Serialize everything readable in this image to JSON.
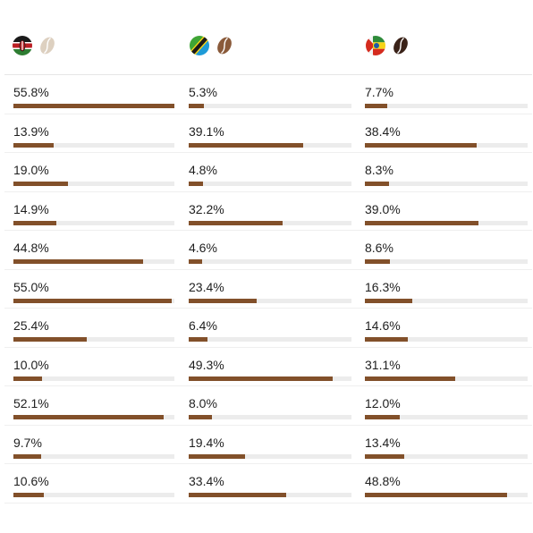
{
  "columns": [
    {
      "key": "kenya",
      "flag": "kenya-flag-icon",
      "bean_icon": "coffee-bean-light-icon",
      "bean_color": "#ddd0c0"
    },
    {
      "key": "tanzania",
      "flag": "tanzania-flag-icon",
      "bean_icon": "coffee-bean-medium-icon",
      "bean_color": "#8a5a3a"
    },
    {
      "key": "ethiopia",
      "flag": "ethiopia-flag-icon",
      "bean_icon": "coffee-bean-dark-icon",
      "bean_color": "#3a2218"
    }
  ],
  "bar_color": "#82502a",
  "rows": [
    [
      {
        "label": "55.8%",
        "value": 55.8
      },
      {
        "label": "5.3%",
        "value": 5.3
      },
      {
        "label": "7.7%",
        "value": 7.7
      }
    ],
    [
      {
        "label": "13.9%",
        "value": 13.9
      },
      {
        "label": "39.1%",
        "value": 39.1
      },
      {
        "label": "38.4%",
        "value": 38.4
      }
    ],
    [
      {
        "label": "19.0%",
        "value": 19.0
      },
      {
        "label": "4.8%",
        "value": 4.8
      },
      {
        "label": "8.3%",
        "value": 8.3
      }
    ],
    [
      {
        "label": "14.9%",
        "value": 14.9
      },
      {
        "label": "32.2%",
        "value": 32.2
      },
      {
        "label": "39.0%",
        "value": 39.0
      }
    ],
    [
      {
        "label": "44.8%",
        "value": 44.8
      },
      {
        "label": "4.6%",
        "value": 4.6
      },
      {
        "label": "8.6%",
        "value": 8.6
      }
    ],
    [
      {
        "label": "55.0%",
        "value": 55.0
      },
      {
        "label": "23.4%",
        "value": 23.4
      },
      {
        "label": "16.3%",
        "value": 16.3
      }
    ],
    [
      {
        "label": "25.4%",
        "value": 25.4
      },
      {
        "label": "6.4%",
        "value": 6.4
      },
      {
        "label": "14.6%",
        "value": 14.6
      }
    ],
    [
      {
        "label": "10.0%",
        "value": 10.0
      },
      {
        "label": "49.3%",
        "value": 49.3
      },
      {
        "label": "31.1%",
        "value": 31.1
      }
    ],
    [
      {
        "label": "52.1%",
        "value": 52.1
      },
      {
        "label": "8.0%",
        "value": 8.0
      },
      {
        "label": "12.0%",
        "value": 12.0
      }
    ],
    [
      {
        "label": "9.7%",
        "value": 9.7
      },
      {
        "label": "19.4%",
        "value": 19.4
      },
      {
        "label": "13.4%",
        "value": 13.4
      }
    ],
    [
      {
        "label": "10.6%",
        "value": 10.6
      },
      {
        "label": "33.4%",
        "value": 33.4
      },
      {
        "label": "48.8%",
        "value": 48.8
      }
    ]
  ]
}
